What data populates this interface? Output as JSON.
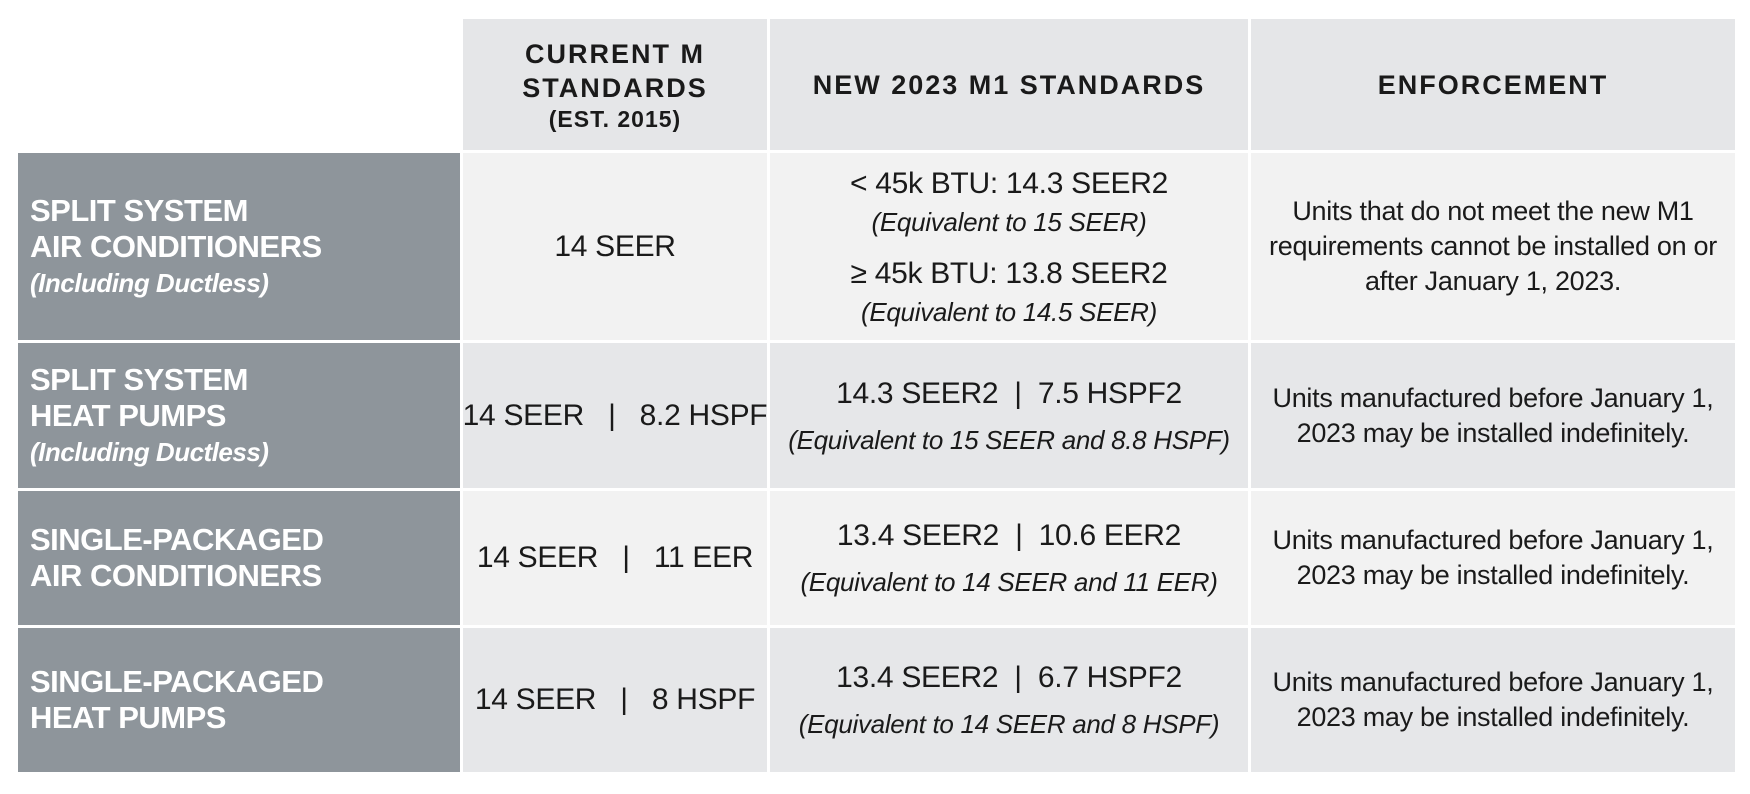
{
  "headers": {
    "current": [
      "CURRENT M",
      "STANDARDS",
      "(EST. 2015)"
    ],
    "new": "NEW 2023 M1 STANDARDS",
    "enforcement": "ENFORCEMENT"
  },
  "rows": [
    {
      "label": [
        "SPLIT SYSTEM",
        "AIR CONDITIONERS"
      ],
      "note": "(Including Ductless)",
      "current": "14 SEER",
      "new_lines": [
        "< 45k BTU:  14.3 SEER2",
        "(Equivalent to 15 SEER)",
        "≥ 45k BTU:  13.8 SEER2",
        "(Equivalent to 14.5 SEER)"
      ],
      "enforcement": "Units that do not meet the new M1 requirements cannot be installed on or after January 1, 2023."
    },
    {
      "label": [
        "SPLIT SYSTEM",
        "HEAT PUMPS"
      ],
      "note": "(Including Ductless)",
      "current": "14 SEER   |   8.2 HSPF",
      "new_lines": [
        "14.3 SEER2  |  7.5 HSPF2",
        "(Equivalent to 15 SEER and 8.8 HSPF)"
      ],
      "enforcement": "Units manufactured before January 1, 2023 may be installed indefinitely."
    },
    {
      "label": [
        "SINGLE-PACKAGED",
        "AIR CONDITIONERS"
      ],
      "current": "14 SEER   |   11 EER",
      "new_lines": [
        "13.4 SEER2  |  10.6 EER2",
        "(Equivalent to 14 SEER and 11 EER)"
      ],
      "enforcement": "Units manufactured before January 1, 2023 may be installed indefinitely."
    },
    {
      "label": [
        "SINGLE-PACKAGED",
        "HEAT PUMPS"
      ],
      "current": "14 SEER   |   8 HSPF",
      "new_lines": [
        "13.4 SEER2  |  6.7 HSPF2",
        "(Equivalent to 14 SEER and 8 HSPF)"
      ],
      "enforcement": "Units manufactured before January 1, 2023 may be installed indefinitely."
    }
  ],
  "colors": {
    "header_bg": "#e5e6e8",
    "label_bg": "#8e959b",
    "row_light": "#f2f2f2",
    "row_dark": "#e6e7e9"
  }
}
